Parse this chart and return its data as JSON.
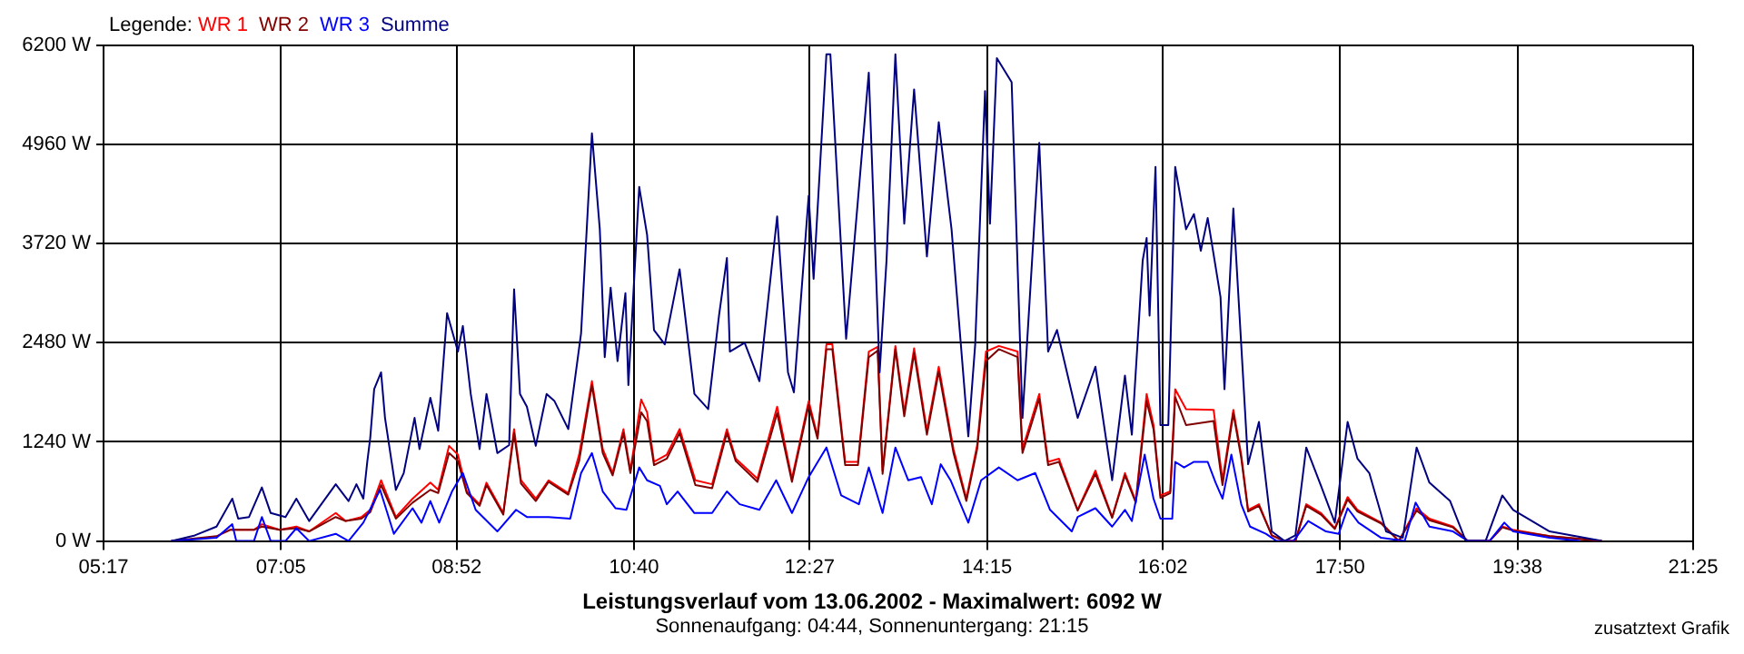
{
  "chart_data": {
    "type": "line",
    "title": "Leistungsverlauf vom 13.06.2002 - Maximalwert: 6092 W",
    "subtitle": "Sonnenaufgang: 04:44, Sonnenuntergang: 21:15",
    "annotations": [
      "zusatztext Grafik"
    ],
    "legend_title": "Legende:",
    "legend": "top left",
    "grid": true,
    "marker": "none",
    "line_style": "solid",
    "xlim": [
      5.2833,
      21.4167
    ],
    "xticks": [
      {
        "value": 5.2833,
        "label": "05:17"
      },
      {
        "value": 7.0833,
        "label": "07:05"
      },
      {
        "value": 8.8667,
        "label": "08:52"
      },
      {
        "value": 10.6667,
        "label": "10:40"
      },
      {
        "value": 12.45,
        "label": "12:27"
      },
      {
        "value": 14.25,
        "label": "14:15"
      },
      {
        "value": 16.0333,
        "label": "16:02"
      },
      {
        "value": 17.8333,
        "label": "17:50"
      },
      {
        "value": 19.6333,
        "label": "19:38"
      },
      {
        "value": 21.4167,
        "label": "21:25"
      }
    ],
    "ylim": [
      0,
      6200
    ],
    "yticks": [
      {
        "value": 0,
        "label": "0 W"
      },
      {
        "value": 1240,
        "label": "1240 W"
      },
      {
        "value": 2480,
        "label": "2480 W"
      },
      {
        "value": 3720,
        "label": "3720 W"
      },
      {
        "value": 4960,
        "label": "4960 W"
      },
      {
        "value": 6200,
        "label": "6200 W"
      }
    ],
    "series": [
      {
        "name": "WR 1",
        "color": "#ff0000",
        "x": [
          6.57,
          6.81,
          6.89,
          7.07,
          7.24,
          7.37,
          7.64,
          7.74,
          7.9,
          7.99,
          8.1,
          8.25,
          8.42,
          8.6,
          8.68,
          8.79,
          8.88,
          8.97,
          9.1,
          9.17,
          9.34,
          9.45,
          9.52,
          9.67,
          9.8,
          10.0,
          10.11,
          10.24,
          10.35,
          10.45,
          10.56,
          10.63,
          10.74,
          10.8,
          10.87,
          11.0,
          11.13,
          11.29,
          11.46,
          11.61,
          11.7,
          11.92,
          12.12,
          12.27,
          12.44,
          12.53,
          12.62,
          12.68,
          12.81,
          12.94,
          13.05,
          13.14,
          13.19,
          13.32,
          13.41,
          13.51,
          13.64,
          13.76,
          13.91,
          14.04,
          14.15,
          14.24,
          14.37,
          14.56,
          14.61,
          14.78,
          14.87,
          14.98,
          15.17,
          15.35,
          15.52,
          15.65,
          15.76,
          15.87,
          15.94,
          16.01,
          16.11,
          16.16,
          16.27,
          16.55,
          16.64,
          16.75,
          16.83,
          16.9,
          17.01,
          17.14,
          17.27,
          17.38,
          17.49,
          17.64,
          17.78,
          17.91,
          18.01,
          18.25,
          18.43,
          18.61,
          18.74,
          18.98,
          19.13,
          19.35,
          19.48,
          19.59,
          19.96,
          20.49
        ],
        "values": [
          140,
          140,
          210,
          140,
          180,
          120,
          350,
          250,
          300,
          390,
          760,
          300,
          530,
          730,
          640,
          1190,
          1080,
          620,
          460,
          730,
          350,
          1400,
          760,
          530,
          760,
          600,
          1080,
          2000,
          1150,
          850,
          1400,
          880,
          1770,
          1610,
          990,
          1080,
          1400,
          760,
          710,
          1400,
          1030,
          780,
          1680,
          780,
          1750,
          1310,
          2460,
          2460,
          990,
          990,
          2370,
          2430,
          880,
          2440,
          1610,
          2410,
          1380,
          2180,
          1150,
          530,
          1200,
          2370,
          2440,
          2370,
          1150,
          1840,
          990,
          1030,
          390,
          880,
          300,
          850,
          500,
          1840,
          1450,
          570,
          620,
          1900,
          1650,
          1640,
          760,
          1640,
          1080,
          390,
          460,
          70,
          0,
          0,
          460,
          350,
          160,
          550,
          390,
          230,
          0,
          410,
          280,
          180,
          0,
          0,
          180,
          140,
          60,
          0
        ]
      },
      {
        "name": "WR 2",
        "color": "#800000",
        "x": [
          5.97,
          6.43,
          6.57,
          6.81,
          6.89,
          7.07,
          7.24,
          7.37,
          7.64,
          7.74,
          7.9,
          7.99,
          8.1,
          8.25,
          8.42,
          8.6,
          8.68,
          8.79,
          8.88,
          8.97,
          9.1,
          9.17,
          9.34,
          9.45,
          9.52,
          9.67,
          9.8,
          10.0,
          10.11,
          10.24,
          10.35,
          10.45,
          10.56,
          10.63,
          10.74,
          10.8,
          10.87,
          11.0,
          11.13,
          11.29,
          11.46,
          11.61,
          11.7,
          11.92,
          12.12,
          12.27,
          12.44,
          12.53,
          12.62,
          12.68,
          12.81,
          12.94,
          13.05,
          13.14,
          13.19,
          13.32,
          13.41,
          13.51,
          13.64,
          13.76,
          13.91,
          14.04,
          14.15,
          14.24,
          14.37,
          14.56,
          14.61,
          14.78,
          14.87,
          14.98,
          15.17,
          15.35,
          15.52,
          15.65,
          15.76,
          15.87,
          15.94,
          16.01,
          16.11,
          16.16,
          16.27,
          16.55,
          16.64,
          16.75,
          16.83,
          16.9,
          17.01,
          17.14,
          17.27,
          17.38,
          17.49,
          17.64,
          17.78,
          17.91,
          18.01,
          18.25,
          18.43,
          18.61,
          18.74,
          18.98,
          19.13,
          19.35,
          19.48,
          19.59,
          19.96,
          20.49
        ],
        "values": [
          0,
          60,
          140,
          140,
          180,
          140,
          160,
          120,
          300,
          250,
          280,
          360,
          700,
          280,
          480,
          640,
          600,
          1100,
          1000,
          600,
          440,
          700,
          330,
          1350,
          720,
          500,
          740,
          580,
          1000,
          1950,
          1100,
          820,
          1350,
          850,
          1610,
          1500,
          950,
          1030,
          1350,
          700,
          660,
          1350,
          1000,
          740,
          1600,
          740,
          1700,
          1280,
          2400,
          2400,
          950,
          950,
          2300,
          2380,
          840,
          2400,
          1560,
          2350,
          1330,
          2120,
          1100,
          500,
          1150,
          2250,
          2400,
          2300,
          1100,
          1780,
          950,
          990,
          380,
          840,
          290,
          820,
          480,
          1750,
          1400,
          540,
          600,
          1800,
          1450,
          1500,
          700,
          1600,
          1040,
          370,
          440,
          70,
          0,
          0,
          440,
          330,
          150,
          520,
          370,
          220,
          0,
          380,
          260,
          170,
          0,
          0,
          170,
          130,
          60,
          0
        ]
      },
      {
        "name": "WR 3",
        "color": "#0000ff",
        "x": [
          5.97,
          6.43,
          6.59,
          6.63,
          6.81,
          6.89,
          6.98,
          7.13,
          7.24,
          7.37,
          7.64,
          7.77,
          7.92,
          8.09,
          8.23,
          8.42,
          8.51,
          8.6,
          8.69,
          8.82,
          8.93,
          9.06,
          9.28,
          9.47,
          9.58,
          9.8,
          10.02,
          10.13,
          10.24,
          10.35,
          10.48,
          10.59,
          10.72,
          10.8,
          10.93,
          11.0,
          11.11,
          11.28,
          11.46,
          11.61,
          11.74,
          11.94,
          12.11,
          12.27,
          12.44,
          12.62,
          12.77,
          12.95,
          13.05,
          13.19,
          13.32,
          13.45,
          13.58,
          13.69,
          13.78,
          13.88,
          14.06,
          14.19,
          14.37,
          14.56,
          14.74,
          14.89,
          15.11,
          15.17,
          15.35,
          15.52,
          15.65,
          15.72,
          15.85,
          15.94,
          16.01,
          16.13,
          16.16,
          16.25,
          16.35,
          16.49,
          16.57,
          16.64,
          16.73,
          16.83,
          16.92,
          17.08,
          17.19,
          17.36,
          17.51,
          17.69,
          17.82,
          17.91,
          18.02,
          18.25,
          18.49,
          18.6,
          18.74,
          18.98,
          19.13,
          19.35,
          19.5,
          19.59,
          19.96,
          20.27
        ],
        "values": [
          0,
          40,
          210,
          0,
          0,
          300,
          0,
          0,
          160,
          0,
          90,
          0,
          230,
          640,
          90,
          410,
          230,
          500,
          230,
          620,
          850,
          390,
          120,
          390,
          300,
          300,
          280,
          850,
          1100,
          620,
          410,
          390,
          920,
          760,
          690,
          460,
          620,
          350,
          350,
          620,
          460,
          390,
          760,
          350,
          800,
          1170,
          570,
          460,
          920,
          350,
          1170,
          760,
          800,
          460,
          960,
          760,
          230,
          760,
          920,
          760,
          850,
          390,
          120,
          300,
          410,
          180,
          390,
          250,
          1080,
          530,
          280,
          280,
          990,
          920,
          990,
          990,
          730,
          530,
          1080,
          460,
          180,
          90,
          0,
          0,
          250,
          120,
          90,
          410,
          230,
          40,
          0,
          480,
          180,
          120,
          0,
          0,
          230,
          120,
          40,
          0
        ]
      },
      {
        "name": "Summe",
        "color": "#000080",
        "x": [
          5.97,
          6.21,
          6.43,
          6.59,
          6.65,
          6.76,
          6.89,
          6.98,
          7.13,
          7.24,
          7.37,
          7.64,
          7.77,
          7.85,
          7.92,
          7.96,
          7.99,
          8.03,
          8.1,
          8.14,
          8.25,
          8.33,
          8.44,
          8.49,
          8.6,
          8.68,
          8.77,
          8.88,
          8.93,
          9.01,
          9.1,
          9.17,
          9.28,
          9.4,
          9.45,
          9.51,
          9.58,
          9.67,
          9.78,
          9.86,
          10.0,
          10.13,
          10.24,
          10.32,
          10.37,
          10.43,
          10.5,
          10.58,
          10.61,
          10.72,
          10.8,
          10.87,
          10.98,
          11.13,
          11.28,
          11.42,
          11.53,
          11.61,
          11.64,
          11.79,
          11.94,
          12.12,
          12.23,
          12.29,
          12.44,
          12.49,
          12.62,
          12.66,
          12.82,
          13.05,
          13.16,
          13.23,
          13.32,
          13.41,
          13.51,
          13.64,
          13.76,
          13.89,
          14.06,
          14.13,
          14.23,
          14.28,
          14.35,
          14.5,
          14.61,
          14.78,
          14.87,
          14.96,
          15.17,
          15.35,
          15.52,
          15.65,
          15.72,
          15.83,
          15.87,
          15.9,
          15.96,
          16.01,
          16.09,
          16.16,
          16.27,
          16.35,
          16.42,
          16.49,
          16.62,
          16.66,
          16.75,
          16.83,
          16.9,
          17.01,
          17.14,
          17.27,
          17.38,
          17.49,
          17.64,
          17.78,
          17.91,
          18.01,
          18.13,
          18.3,
          18.47,
          18.61,
          18.74,
          18.95,
          19.11,
          19.31,
          19.48,
          19.59,
          19.96,
          20.49
        ],
        "values": [
          0,
          70,
          180,
          530,
          280,
          300,
          670,
          350,
          300,
          530,
          250,
          710,
          500,
          710,
          530,
          990,
          1290,
          1900,
          2110,
          1540,
          640,
          850,
          1540,
          1150,
          1790,
          1380,
          2850,
          2370,
          2690,
          1840,
          1150,
          1840,
          1100,
          1200,
          3150,
          1840,
          1680,
          1190,
          1840,
          1750,
          1400,
          2600,
          5100,
          3900,
          2300,
          3170,
          2250,
          3100,
          1950,
          4430,
          3830,
          2640,
          2460,
          3400,
          1840,
          1650,
          2820,
          3540,
          2370,
          2480,
          2000,
          4060,
          2110,
          1860,
          4320,
          3280,
          6090,
          6090,
          2530,
          5860,
          2110,
          3510,
          6090,
          3970,
          5650,
          3560,
          5240,
          3900,
          1310,
          2460,
          5630,
          3970,
          6040,
          5740,
          1540,
          4980,
          2370,
          2640,
          1540,
          2180,
          760,
          2070,
          1330,
          3510,
          3790,
          2820,
          4680,
          1450,
          1450,
          4680,
          3900,
          4090,
          3630,
          4040,
          3050,
          1900,
          4160,
          2460,
          960,
          1490,
          120,
          0,
          70,
          1170,
          690,
          230,
          1490,
          1030,
          850,
          120,
          40,
          1170,
          730,
          500,
          0,
          0,
          570,
          390,
          120,
          0
        ]
      }
    ]
  }
}
